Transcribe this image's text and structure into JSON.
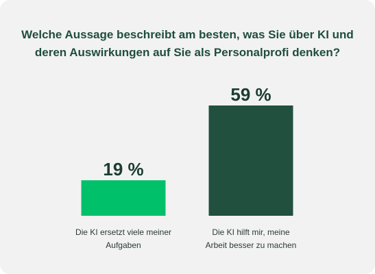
{
  "header": {
    "title_lines": [
      "Welche Aussage beschreibt am besten, was Sie über KI und",
      "deren Auswirkungen auf Sie als Personalprofi denken?"
    ]
  },
  "colors": {
    "background": "#f2f2f2",
    "title_text": "#1f4d3e",
    "value_text": "#1b3d30",
    "label_text": "#2b3a35"
  },
  "chart_data": {
    "type": "bar",
    "title": "Welche Aussage beschreibt am besten, was Sie über KI und deren Auswirkungen auf Sie als Personalprofi denken?",
    "categories": [
      [
        "Die KI ersetzt viele meiner",
        "Aufgaben"
      ],
      [
        "Die KI hilft mir, meine",
        "Arbeit besser zu machen"
      ]
    ],
    "values": [
      19,
      59
    ],
    "value_labels": [
      "19 %",
      "59 %"
    ],
    "bar_colors": [
      "#00c16a",
      "#21503f"
    ],
    "unit": "%",
    "ylim": [
      0,
      59
    ],
    "grid": false,
    "legend": "none"
  }
}
